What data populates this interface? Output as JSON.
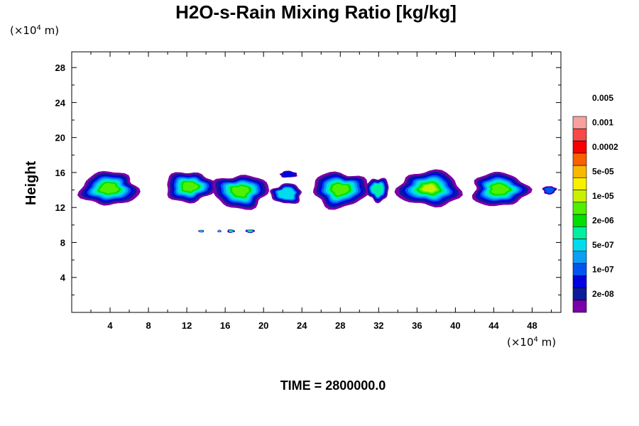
{
  "chart_data": {
    "type": "heatmap",
    "title": "H2O-s-Rain Mixing Ratio [kg/kg]",
    "ylabel": "Height",
    "x_unit": "(×10⁴ m)",
    "y_unit": "(×10⁴ m)",
    "unit_text": "(×10",
    "unit_exp": "4",
    "unit_tail": " m)",
    "xlim": [
      0,
      51
    ],
    "ylim": [
      0,
      29.8
    ],
    "x_ticks": [
      4,
      8,
      12,
      16,
      20,
      24,
      28,
      32,
      36,
      40,
      44,
      48
    ],
    "x_tick_labels": [
      "4",
      "8",
      "12",
      "16",
      "20",
      "24",
      "28",
      "32",
      "36",
      "40",
      "44",
      "48"
    ],
    "y_ticks": [
      4,
      8,
      12,
      16,
      20,
      24,
      28
    ],
    "y_tick_labels": [
      "4",
      "8",
      "12",
      "16",
      "20",
      "24",
      "28"
    ],
    "colorbar": {
      "levels": [
        "2e-08",
        "1e-07",
        "5e-07",
        "2e-06",
        "1e-05",
        "5e-05",
        "0.0002",
        "0.001",
        "0.005"
      ],
      "colors": [
        "#7a00a8",
        "#0c1a9c",
        "#0000e0",
        "#0055f0",
        "#0a9ff5",
        "#00dcee",
        "#00f0a0",
        "#00e000",
        "#50f000",
        "#c8f000",
        "#f8f000",
        "#f8b800",
        "#f86000",
        "#f80000",
        "#f84848",
        "#f8a0a0"
      ]
    },
    "cells": [
      {
        "name": "cell-1",
        "x_center": 3.9,
        "z_center": 14.2,
        "x_halfwidth": 3.0,
        "z_halfheight": 2.0,
        "peak_level": 8
      },
      {
        "name": "cell-2",
        "x_center": 12.3,
        "z_center": 14.4,
        "x_halfwidth": 2.6,
        "z_halfheight": 1.8,
        "peak_level": 8
      },
      {
        "name": "cell-3",
        "x_center": 17.6,
        "z_center": 13.9,
        "x_halfwidth": 2.9,
        "z_halfheight": 2.0,
        "peak_level": 8
      },
      {
        "name": "cell-4",
        "x_center": 22.4,
        "z_center": 13.6,
        "x_halfwidth": 1.6,
        "z_halfheight": 1.2,
        "peak_level": 5
      },
      {
        "name": "cell-5",
        "x_center": 22.6,
        "z_center": 15.8,
        "x_halfwidth": 0.9,
        "z_halfheight": 0.4,
        "peak_level": 2
      },
      {
        "name": "cell-6",
        "x_center": 28.0,
        "z_center": 14.1,
        "x_halfwidth": 2.9,
        "z_halfheight": 2.1,
        "peak_level": 8
      },
      {
        "name": "cell-7",
        "x_center": 31.9,
        "z_center": 14.1,
        "x_halfwidth": 1.2,
        "z_halfheight": 1.4,
        "peak_level": 6
      },
      {
        "name": "cell-8",
        "x_center": 37.3,
        "z_center": 14.2,
        "x_halfwidth": 3.3,
        "z_halfheight": 2.1,
        "peak_level": 9
      },
      {
        "name": "cell-9",
        "x_center": 44.6,
        "z_center": 14.1,
        "x_halfwidth": 2.9,
        "z_halfheight": 2.0,
        "peak_level": 8
      },
      {
        "name": "cell-10",
        "x_center": 49.8,
        "z_center": 14.0,
        "x_halfwidth": 0.7,
        "z_halfheight": 0.5,
        "peak_level": 3
      },
      {
        "name": "cell-11",
        "x_center": 13.5,
        "z_center": 9.3,
        "x_halfwidth": 0.3,
        "z_halfheight": 0.15,
        "peak_level": 6
      },
      {
        "name": "cell-12",
        "x_center": 15.4,
        "z_center": 9.3,
        "x_halfwidth": 0.2,
        "z_halfheight": 0.15,
        "peak_level": 6
      },
      {
        "name": "cell-13",
        "x_center": 16.6,
        "z_center": 9.3,
        "x_halfwidth": 0.4,
        "z_halfheight": 0.2,
        "peak_level": 8
      },
      {
        "name": "cell-14",
        "x_center": 18.6,
        "z_center": 9.3,
        "x_halfwidth": 0.5,
        "z_halfheight": 0.2,
        "peak_level": 8
      }
    ]
  },
  "footer": {
    "time_label": "TIME = 2800000.0"
  }
}
